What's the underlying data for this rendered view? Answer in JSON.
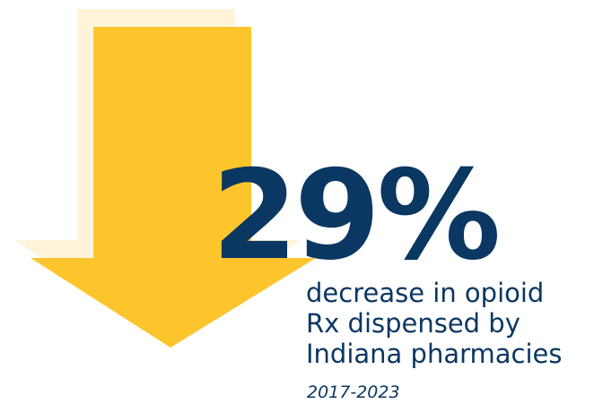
{
  "colors": {
    "arrow_main": "#FDC52C",
    "arrow_shadow": "#FFF4DA",
    "text": "#0B3763"
  },
  "icon": "down-arrow-icon",
  "stat": {
    "value": "29%"
  },
  "caption": {
    "line1": "decrease in opioid",
    "line2": "Rx dispensed by",
    "line3": "Indiana pharmacies"
  },
  "period": "2017-2023"
}
